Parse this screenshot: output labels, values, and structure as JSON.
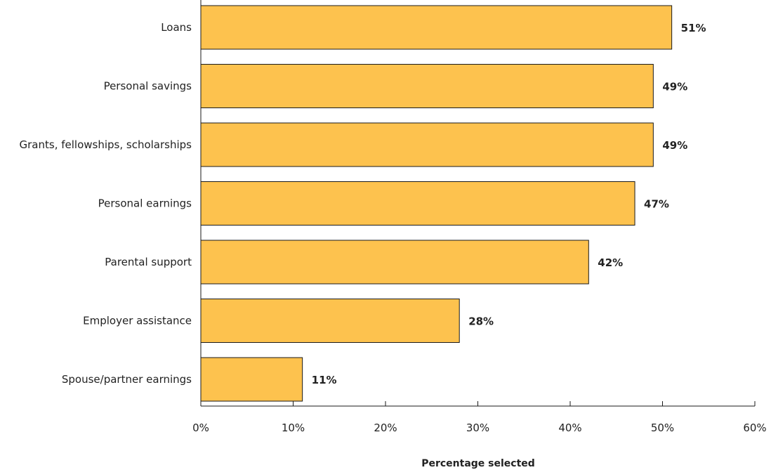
{
  "chart_data": {
    "type": "bar",
    "orientation": "horizontal",
    "categories": [
      "Loans",
      "Personal savings",
      "Grants, fellowships, scholarships",
      "Personal earnings",
      "Parental support",
      "Employer assistance",
      "Spouse/partner earnings"
    ],
    "values": [
      51,
      49,
      49,
      47,
      42,
      28,
      11
    ],
    "data_labels": [
      "51%",
      "49%",
      "49%",
      "47%",
      "42%",
      "28%",
      "11%"
    ],
    "xlabel": "Percentage selected",
    "ylabel": "",
    "xlim": [
      0,
      60
    ],
    "xticks": [
      0,
      10,
      20,
      30,
      40,
      50,
      60
    ],
    "xtick_labels": [
      "0%",
      "10%",
      "20%",
      "30%",
      "40%",
      "50%",
      "60%"
    ],
    "grid": false,
    "bar_color": "#FDC24E",
    "bar_edge_color": "#1a1a1a"
  }
}
